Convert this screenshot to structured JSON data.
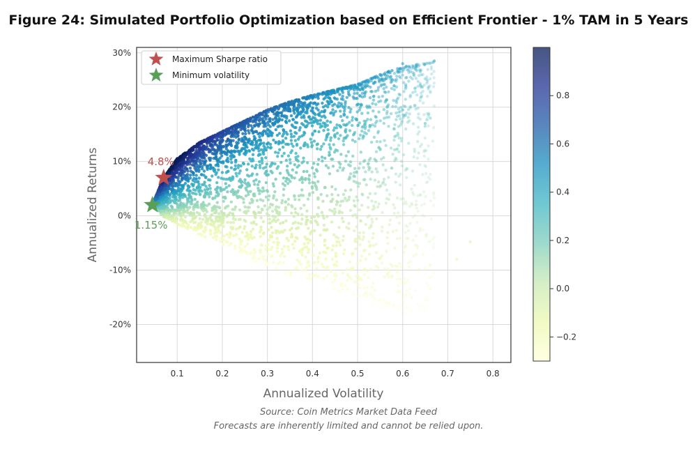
{
  "title": "Figure 24: Simulated Portfolio Optimization based on Efficient Frontier - 1% TAM in 5 Years",
  "source_lines": [
    "Source: Coin Metrics Market Data Feed",
    "Forecasts are inherently limited and cannot be relied upon."
  ],
  "colors": {
    "max_sharpe": "#c0504d",
    "min_volatility": "#5a9e5a",
    "colormap": [
      "#ffffd9",
      "#edf8b1",
      "#c7e9b4",
      "#7fcdbb",
      "#41b6c4",
      "#1d91c0",
      "#225ea8",
      "#253494",
      "#081d58"
    ]
  },
  "chart_data": {
    "type": "scatter",
    "xlabel": "Annualized Volatility",
    "ylabel": "Annualized Returns",
    "xlim": [
      0.01,
      0.84
    ],
    "ylim": [
      -27,
      31
    ],
    "x_ticks": [
      0.1,
      0.2,
      0.3,
      0.4,
      0.5,
      0.6,
      0.7,
      0.8
    ],
    "x_tick_labels": [
      "0.1",
      "0.2",
      "0.3",
      "0.4",
      "0.5",
      "0.6",
      "0.7",
      "0.8"
    ],
    "y_ticks": [
      -20,
      -10,
      0,
      10,
      20,
      30
    ],
    "y_tick_labels": [
      "-20%",
      "-10%",
      "0%",
      "10%",
      "20%",
      "30%"
    ],
    "grid": true,
    "colorbar": {
      "range": [
        -0.3,
        1.0
      ],
      "ticks": [
        -0.2,
        0.0,
        0.2,
        0.4,
        0.6,
        0.8
      ],
      "tick_labels": [
        "−0.2",
        "0.0",
        "0.2",
        "0.4",
        "0.6",
        "0.8"
      ]
    },
    "legend": {
      "placement": "top-left",
      "entries": [
        {
          "label": "Maximum Sharpe ratio",
          "marker": "star",
          "color_key": "max_sharpe"
        },
        {
          "label": "Minimum volatility",
          "marker": "star",
          "color_key": "min_volatility"
        }
      ]
    },
    "highlighted_points": [
      {
        "name": "Maximum Sharpe ratio",
        "x": 0.07,
        "y": 7.0,
        "label": "4.8%",
        "color_key": "max_sharpe"
      },
      {
        "name": "Minimum volatility",
        "x": 0.045,
        "y": 2.0,
        "label": "1.15%",
        "color_key": "min_volatility"
      }
    ],
    "cloud_envelope": {
      "upper": [
        [
          0.045,
          2.0
        ],
        [
          0.07,
          7.0
        ],
        [
          0.1,
          10.5
        ],
        [
          0.15,
          13.5
        ],
        [
          0.2,
          15.5
        ],
        [
          0.25,
          17.5
        ],
        [
          0.3,
          19.5
        ],
        [
          0.35,
          21.0
        ],
        [
          0.4,
          22.2
        ],
        [
          0.45,
          23.2
        ],
        [
          0.5,
          24.2
        ],
        [
          0.55,
          26.0
        ],
        [
          0.6,
          27.5
        ],
        [
          0.67,
          28.3
        ]
      ],
      "lower": [
        [
          0.045,
          2.0
        ],
        [
          0.07,
          -0.2
        ],
        [
          0.1,
          -1.5
        ],
        [
          0.15,
          -3.5
        ],
        [
          0.2,
          -5.5
        ],
        [
          0.25,
          -7.5
        ],
        [
          0.3,
          -9.5
        ],
        [
          0.35,
          -11.0
        ],
        [
          0.4,
          -12.5
        ],
        [
          0.45,
          -14.0
        ],
        [
          0.5,
          -15.5
        ],
        [
          0.55,
          -16.8
        ],
        [
          0.6,
          -18.0
        ],
        [
          0.62,
          -18.5
        ]
      ],
      "sparse_outliers": [
        [
          0.6,
          28.0
        ],
        [
          0.63,
          27.5
        ],
        [
          0.67,
          28.5
        ],
        [
          0.75,
          -4.8
        ],
        [
          0.72,
          -8.0
        ],
        [
          0.65,
          17.0
        ],
        [
          0.6,
          19.5
        ],
        [
          0.62,
          -15.0
        ],
        [
          0.58,
          -16.5
        ]
      ]
    }
  }
}
